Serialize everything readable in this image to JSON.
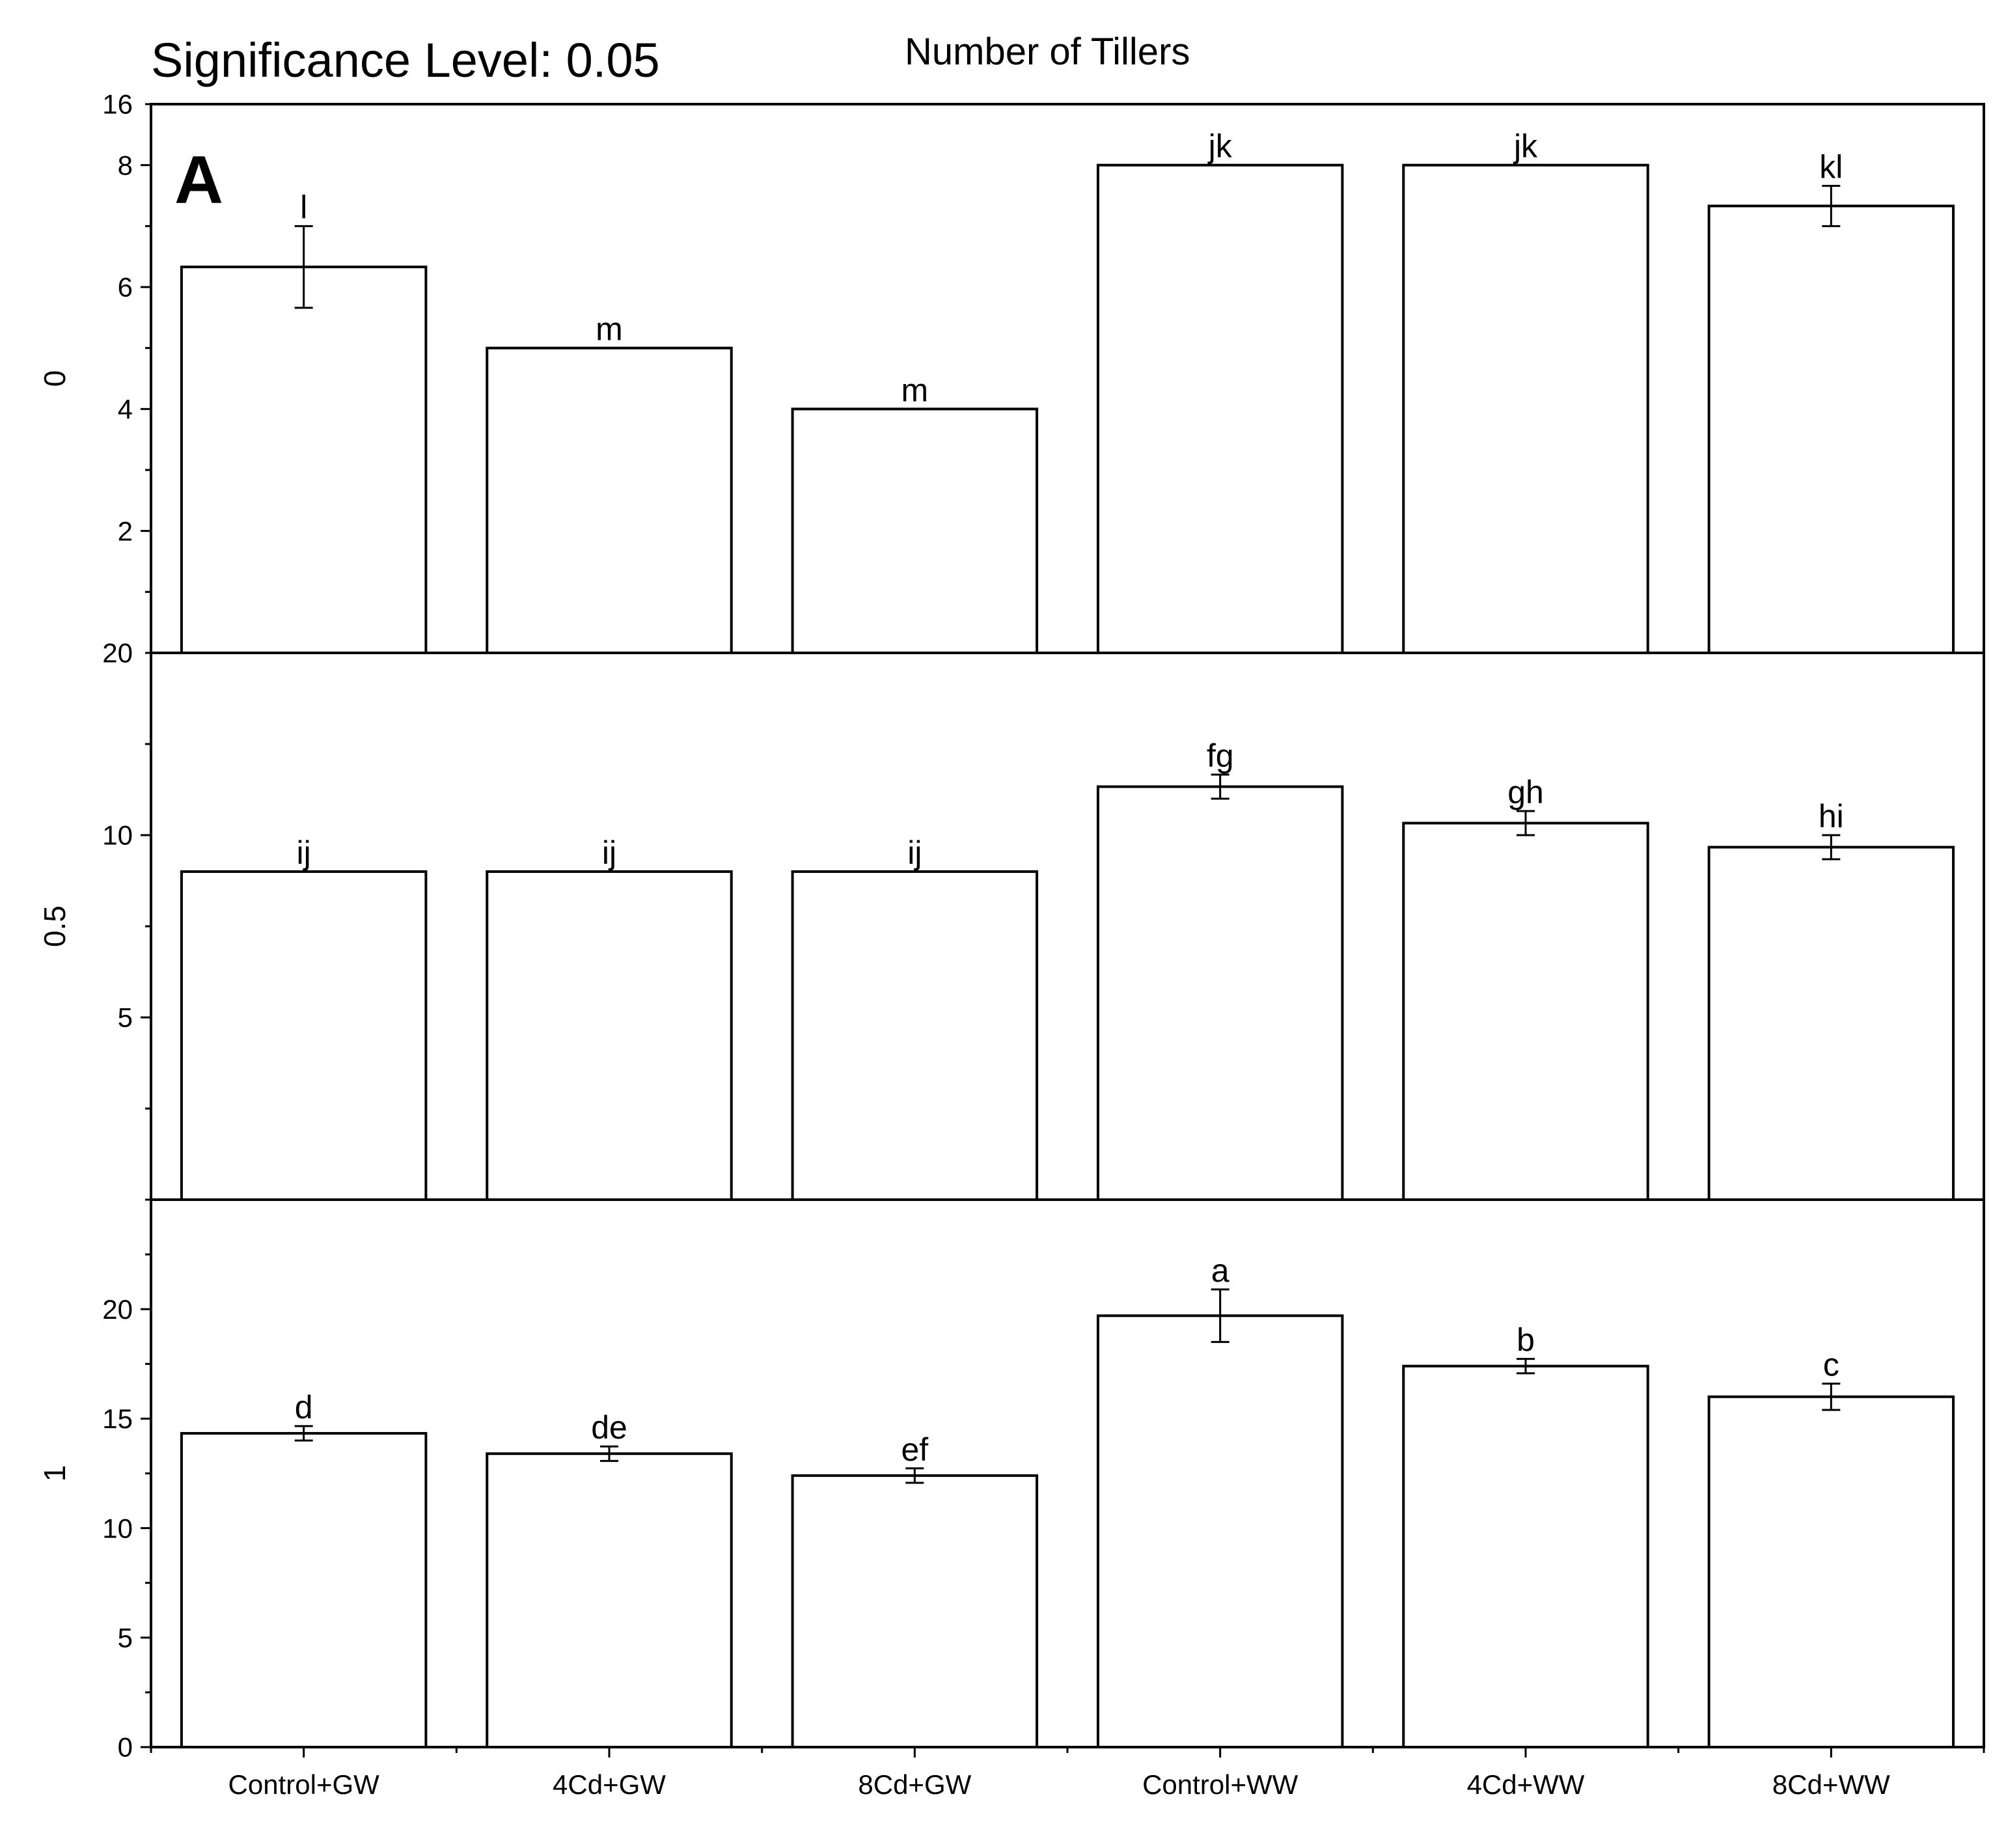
{
  "header": {
    "significance_label": "Significance Level: 0.05",
    "title": "Number of Tillers",
    "panel_letter": "A"
  },
  "chart_data": {
    "type": "bar",
    "title": "Number of Tillers",
    "categories": [
      "Control+GW",
      "4Cd+GW",
      "8Cd+GW",
      "Control+WW",
      "4Cd+WW",
      "8Cd+WW"
    ],
    "panels": [
      {
        "name": "0",
        "ylabel": "0",
        "ylim": [
          0,
          9
        ],
        "ticks": [
          2,
          4,
          6,
          8
        ],
        "top_tick_label": "16",
        "values": [
          6.33,
          5.0,
          4.0,
          8.0,
          8.0,
          7.33
        ],
        "errors": [
          0.67,
          0,
          0,
          0,
          0,
          0.33
        ],
        "letters": [
          "l",
          "m",
          "m",
          "jk",
          "jk",
          "kl"
        ]
      },
      {
        "name": "0.5",
        "ylabel": "0.5",
        "ylim": [
          0,
          15
        ],
        "ticks": [
          5,
          10
        ],
        "top_tick_label": "20",
        "values": [
          9.0,
          9.0,
          9.0,
          11.33,
          10.33,
          9.67
        ],
        "errors": [
          0,
          0,
          0,
          0.33,
          0.33,
          0.33
        ],
        "letters": [
          "ij",
          "ij",
          "ij",
          "fg",
          "gh",
          "hi"
        ]
      },
      {
        "name": "1",
        "ylabel": "1",
        "ylim": [
          0,
          25
        ],
        "ticks": [
          0,
          5,
          10,
          15,
          20
        ],
        "values": [
          14.33,
          13.4,
          12.4,
          19.7,
          17.4,
          16.0
        ],
        "errors": [
          0.33,
          0.33,
          0.33,
          1.2,
          0.33,
          0.6
        ],
        "letters": [
          "d",
          "de",
          "ef",
          "a",
          "b",
          "c"
        ]
      }
    ],
    "grid": false
  }
}
